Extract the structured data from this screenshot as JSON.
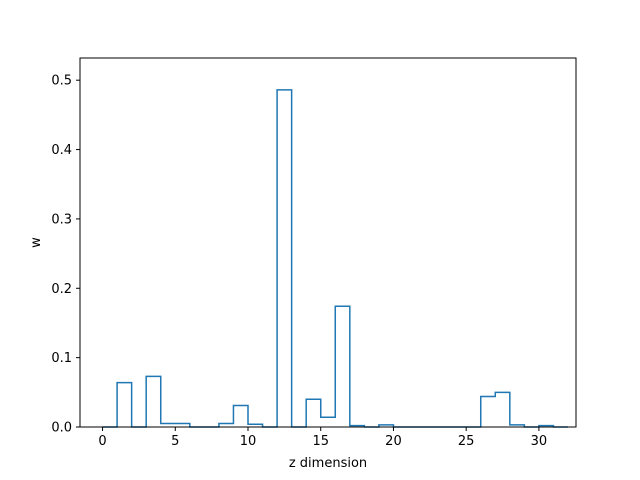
{
  "chart_data": {
    "type": "step",
    "title": "",
    "xlabel": "z dimension",
    "ylabel": "w",
    "xlim": [
      -1.55,
      32.55
    ],
    "ylim": [
      0,
      0.532
    ],
    "x_ticks": [
      0,
      5,
      10,
      15,
      20,
      25,
      30
    ],
    "y_ticks": [
      0.0,
      0.1,
      0.2,
      0.3,
      0.4,
      0.5
    ],
    "x_tick_labels": [
      "0",
      "5",
      "10",
      "15",
      "20",
      "25",
      "30"
    ],
    "y_tick_labels": [
      "0.0",
      "0.1",
      "0.2",
      "0.3",
      "0.4",
      "0.5"
    ],
    "grid": false,
    "series": [
      {
        "color": "#1f77b4",
        "bin_edges": [
          0,
          1,
          2,
          3,
          4,
          5,
          6,
          7,
          8,
          9,
          10,
          11,
          12,
          13,
          14,
          15,
          16,
          17,
          18,
          19,
          20,
          21,
          22,
          23,
          24,
          25,
          26,
          27,
          28,
          29,
          30,
          31,
          32
        ],
        "values": [
          0.0,
          0.064,
          0.0,
          0.073,
          0.005,
          0.005,
          0.0,
          0.0,
          0.005,
          0.031,
          0.004,
          0.0,
          0.486,
          0.0,
          0.04,
          0.014,
          0.174,
          0.002,
          0.0,
          0.003,
          0.0,
          0.0,
          0.0,
          0.0,
          0.0,
          0.0,
          0.044,
          0.05,
          0.003,
          0.0,
          0.002,
          0.0
        ]
      }
    ]
  }
}
